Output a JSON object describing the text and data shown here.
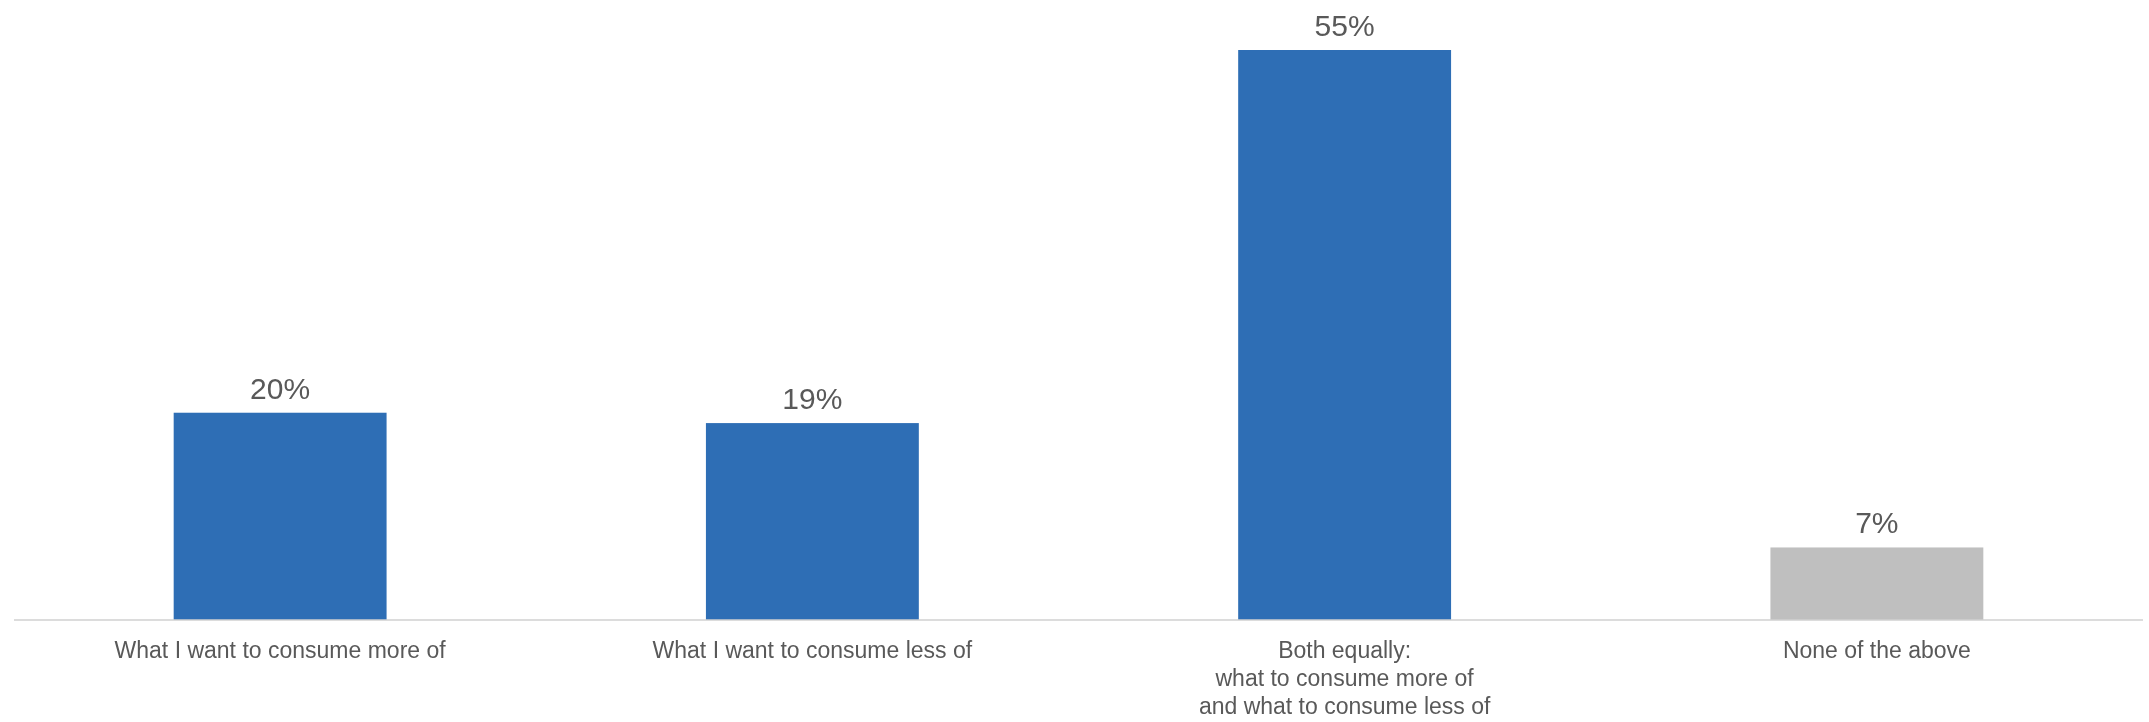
{
  "chart_data": {
    "type": "bar",
    "categories": [
      "What I want to consume more of",
      "What I want to consume less of",
      "Both equally:\nwhat to consume more of\nand what to consume less of",
      "None of the above"
    ],
    "values": [
      20,
      19,
      55,
      7
    ],
    "colors": [
      "#2e6eb5",
      "#2e6eb5",
      "#2e6eb5",
      "#bfbfbf"
    ],
    "value_labels": [
      "20%",
      "19%",
      "55%",
      "7%"
    ]
  }
}
